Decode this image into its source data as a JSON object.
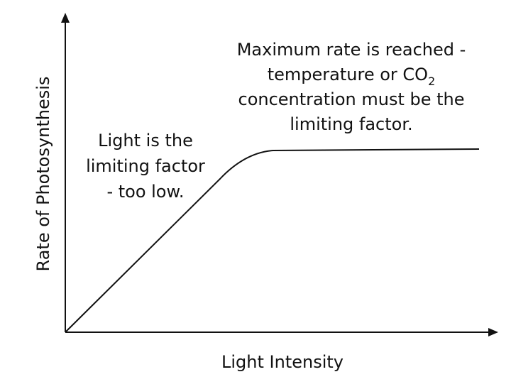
{
  "axes": {
    "y_label": "Rate of Photosynthesis",
    "x_label": "Light Intensity"
  },
  "annotations": [
    {
      "lines": [
        {
          "text": "Maximum rate is reached -"
        },
        {
          "text": "temperature or CO",
          "subscript": "2"
        },
        {
          "text": "concentration must be the"
        },
        {
          "text": "limiting factor."
        }
      ]
    },
    {
      "lines": [
        {
          "text": "Light is the"
        },
        {
          "text": "limiting factor"
        },
        {
          "text": "- too low."
        }
      ]
    }
  ]
}
